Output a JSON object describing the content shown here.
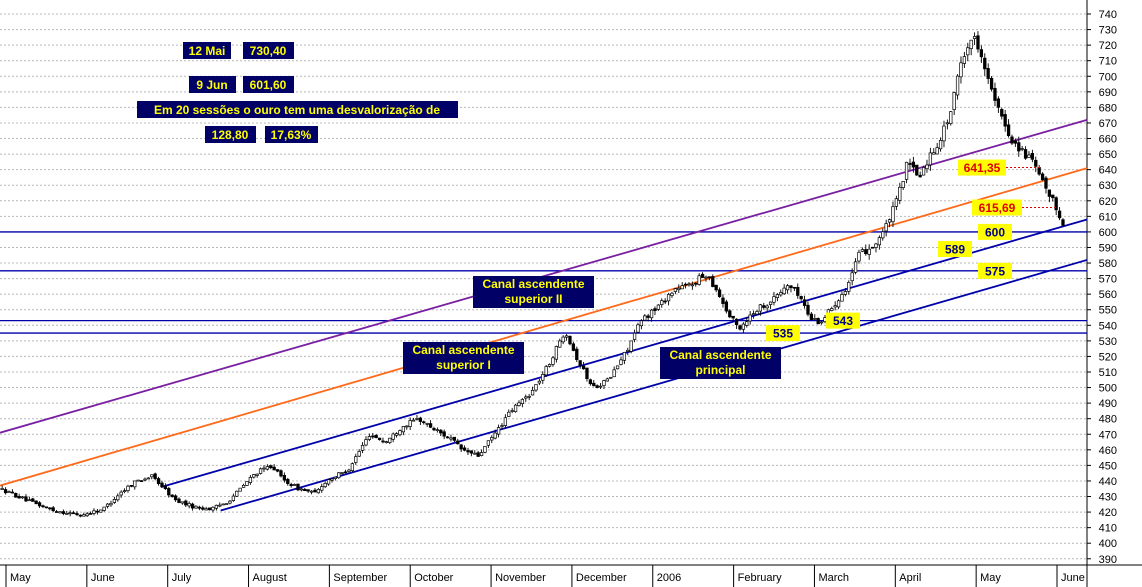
{
  "colors": {
    "navy_box": "#000066",
    "yellow_text": "#ffff00",
    "yellow_box": "#ffff00",
    "red_text": "#e00000",
    "purple_line": "#7a1fa2",
    "orange_line": "#ff6a1a",
    "blue_line": "#0000aa",
    "grid": "#b8b8b8"
  },
  "info": {
    "line1_date": "12 Mai",
    "line1_value": "730,40",
    "line2_date": "9 Jun",
    "line2_value": "601,60",
    "line3": "Em 20 sessões o ouro tem uma desvalorização de",
    "line4_value": "128,80",
    "line4_pct": "17,63%"
  },
  "chart_data": {
    "type": "candlestick",
    "title": "",
    "xlabel": "",
    "ylabel": "",
    "ylim": [
      386,
      749
    ],
    "y_ticks": [
      390,
      400,
      410,
      420,
      430,
      440,
      450,
      460,
      470,
      480,
      490,
      500,
      510,
      520,
      530,
      540,
      550,
      560,
      570,
      580,
      590,
      600,
      610,
      620,
      630,
      640,
      650,
      660,
      670,
      680,
      690,
      700,
      710,
      720,
      730,
      740
    ],
    "x_labels": [
      "May",
      "June",
      "July",
      "August",
      "September",
      "October",
      "November",
      "December",
      "2006",
      "February",
      "March",
      "April",
      "May",
      "June"
    ],
    "grid": true,
    "horizontal_levels": [
      {
        "value": 600,
        "label": "600"
      },
      {
        "value": 575,
        "label": "575"
      },
      {
        "value": 543,
        "label": "543"
      },
      {
        "value": 535,
        "label": "535"
      }
    ],
    "price_labels": [
      {
        "label": "641,35",
        "value": 641.35,
        "style": "red"
      },
      {
        "label": "615,69",
        "value": 615.69,
        "style": "red"
      },
      {
        "label": "600",
        "value": 600,
        "style": "yellow"
      },
      {
        "label": "589",
        "value": 589,
        "style": "yellow"
      },
      {
        "label": "575",
        "value": 575,
        "style": "yellow"
      },
      {
        "label": "543",
        "value": 543,
        "style": "yellow"
      },
      {
        "label": "535",
        "value": 535,
        "style": "yellow"
      }
    ],
    "annotations": [
      {
        "text_lines": [
          "Canal ascendente",
          "superior II"
        ]
      },
      {
        "text_lines": [
          "Canal ascendente",
          "superior I"
        ]
      },
      {
        "text_lines": [
          "Canal ascendente",
          "principal"
        ]
      }
    ],
    "trend_lines": [
      {
        "name": "purple",
        "points": [
          [
            0,
            471
          ],
          [
            1,
            672
          ]
        ]
      },
      {
        "name": "orange",
        "points": [
          [
            0,
            437
          ],
          [
            1,
            641
          ]
        ]
      },
      {
        "name": "channel-upper",
        "points": [
          [
            0.148,
            436
          ],
          [
            1,
            608
          ]
        ]
      },
      {
        "name": "channel-lower",
        "points": [
          [
            0.203,
            421
          ],
          [
            1,
            582
          ]
        ]
      }
    ],
    "price_path": [
      [
        0.0,
        435
      ],
      [
        0.03,
        426
      ],
      [
        0.05,
        421
      ],
      [
        0.075,
        418
      ],
      [
        0.095,
        422
      ],
      [
        0.11,
        432
      ],
      [
        0.125,
        440
      ],
      [
        0.14,
        443
      ],
      [
        0.15,
        436
      ],
      [
        0.16,
        428
      ],
      [
        0.18,
        423
      ],
      [
        0.195,
        422
      ],
      [
        0.21,
        427
      ],
      [
        0.235,
        445
      ],
      [
        0.25,
        450
      ],
      [
        0.26,
        441
      ],
      [
        0.275,
        435
      ],
      [
        0.29,
        432
      ],
      [
        0.3,
        440
      ],
      [
        0.32,
        447
      ],
      [
        0.34,
        470
      ],
      [
        0.355,
        465
      ],
      [
        0.37,
        475
      ],
      [
        0.385,
        480
      ],
      [
        0.4,
        473
      ],
      [
        0.415,
        467
      ],
      [
        0.425,
        460
      ],
      [
        0.44,
        456
      ],
      [
        0.455,
        470
      ],
      [
        0.47,
        485
      ],
      [
        0.49,
        498
      ],
      [
        0.505,
        515
      ],
      [
        0.52,
        537
      ],
      [
        0.53,
        520
      ],
      [
        0.545,
        500
      ],
      [
        0.56,
        505
      ],
      [
        0.575,
        522
      ],
      [
        0.59,
        543
      ],
      [
        0.605,
        552
      ],
      [
        0.62,
        563
      ],
      [
        0.635,
        566
      ],
      [
        0.65,
        573
      ],
      [
        0.66,
        562
      ],
      [
        0.67,
        547
      ],
      [
        0.68,
        538
      ],
      [
        0.695,
        550
      ],
      [
        0.71,
        556
      ],
      [
        0.725,
        566
      ],
      [
        0.735,
        560
      ],
      [
        0.745,
        545
      ],
      [
        0.755,
        542
      ],
      [
        0.77,
        556
      ],
      [
        0.78,
        566
      ],
      [
        0.79,
        585
      ],
      [
        0.805,
        592
      ],
      [
        0.815,
        603
      ],
      [
        0.825,
        620
      ],
      [
        0.835,
        645
      ],
      [
        0.845,
        635
      ],
      [
        0.855,
        648
      ],
      [
        0.865,
        660
      ],
      [
        0.875,
        678
      ],
      [
        0.885,
        712
      ],
      [
        0.895,
        726
      ],
      [
        0.903,
        715
      ],
      [
        0.91,
        695
      ],
      [
        0.92,
        675
      ],
      [
        0.93,
        660
      ],
      [
        0.94,
        652
      ],
      [
        0.95,
        645
      ],
      [
        0.96,
        630
      ],
      [
        0.97,
        618
      ],
      [
        0.978,
        606
      ]
    ]
  }
}
